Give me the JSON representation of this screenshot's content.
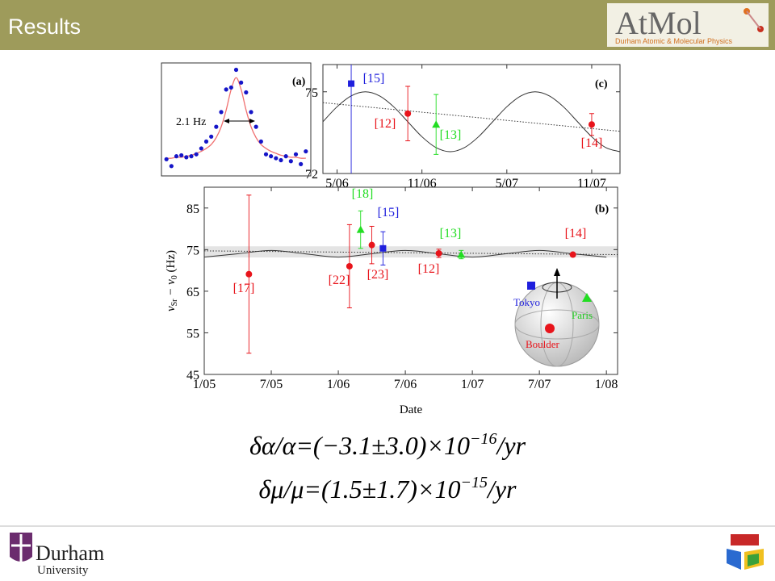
{
  "header": {
    "title": "Results",
    "logo": "AtMol",
    "logo_subtitle": "Durham Atomic & Molecular Physics"
  },
  "chart_data": [
    {
      "type": "scatter",
      "panel_label": "(a)",
      "annotation": "2.1 Hz",
      "x": [
        0,
        1,
        2,
        3,
        4,
        5,
        6,
        7,
        8,
        9,
        10,
        11,
        12,
        13,
        14,
        15,
        16,
        17,
        18,
        19,
        20,
        21,
        22,
        23,
        24,
        25,
        26,
        27,
        28
      ],
      "values": [
        0.07,
        0.0,
        0.1,
        0.11,
        0.09,
        0.1,
        0.12,
        0.18,
        0.25,
        0.3,
        0.4,
        0.55,
        0.78,
        0.8,
        0.98,
        0.85,
        0.75,
        0.55,
        0.4,
        0.25,
        0.12,
        0.1,
        0.08,
        0.06,
        0.1,
        0.05,
        0.12,
        0.02,
        0.15
      ],
      "color": "#1515c8",
      "fit": {
        "values": [
          0.08,
          0.08,
          0.09,
          0.09,
          0.1,
          0.11,
          0.13,
          0.15,
          0.18,
          0.22,
          0.29,
          0.4,
          0.57,
          0.78,
          0.9,
          0.78,
          0.57,
          0.4,
          0.29,
          0.22,
          0.18,
          0.15,
          0.13,
          0.11,
          0.1,
          0.09,
          0.09,
          0.08,
          0.08
        ],
        "color": "#f07070"
      },
      "xlim": [
        -1,
        29
      ],
      "ylim": [
        -0.1,
        1.05
      ]
    },
    {
      "type": "errorbar",
      "panel_label": "(b)",
      "xlabel": "Date",
      "ylabel": [
        "ν",
        "Sr",
        " − ν",
        "0",
        " (Hz)"
      ],
      "xlim": [
        "2005-01",
        "2008-02"
      ],
      "ylim": [
        45,
        90
      ],
      "yticks": [
        45,
        55,
        65,
        75,
        85
      ],
      "xticks": [
        {
          "value": "2005-01",
          "label": "1/05"
        },
        {
          "value": "2005-07",
          "label": "7/05"
        },
        {
          "value": "2006-01",
          "label": "1/06"
        },
        {
          "value": "2006-07",
          "label": "7/06"
        },
        {
          "value": "2007-01",
          "label": "1/07"
        },
        {
          "value": "2007-07",
          "label": "7/07"
        },
        {
          "value": "2008-01",
          "label": "1/08"
        }
      ],
      "points": [
        {
          "label": "[17]",
          "x": "2005-05",
          "y": 69.1,
          "err": 19,
          "color": "#e8141b",
          "marker": "circle"
        },
        {
          "label": "[22]",
          "x": "2006-02",
          "y": 71.0,
          "err": 10,
          "color": "#e8141b",
          "marker": "circle"
        },
        {
          "label": "[18]",
          "x": "2006-03",
          "y": 79.8,
          "err": 4.5,
          "color": "#22dd22",
          "marker": "triangle"
        },
        {
          "label": "[23]",
          "x": "2006-04",
          "y": 76.1,
          "err": 4.5,
          "color": "#e8141b",
          "marker": "circle"
        },
        {
          "label": "[15]",
          "x": "2006-05",
          "y": 75.3,
          "err": 4,
          "color": "#1f1fdd",
          "marker": "square"
        },
        {
          "label": "[12]",
          "x": "2006-10",
          "y": 74.1,
          "err": 1,
          "color": "#e8141b",
          "marker": "circle"
        },
        {
          "label": "[13]",
          "x": "2006-12",
          "y": 73.8,
          "err": 1,
          "color": "#22dd22",
          "marker": "triangle"
        },
        {
          "label": "[14]",
          "x": "2007-10",
          "y": 73.8,
          "err": 0.4,
          "color": "#e8141b",
          "marker": "circle"
        }
      ],
      "curve": {
        "x": [
          "2005-01",
          "2005-04",
          "2005-07",
          "2005-10",
          "2006-01",
          "2006-04",
          "2006-07",
          "2006-10",
          "2007-01",
          "2007-04",
          "2007-07",
          "2007-10",
          "2008-01"
        ],
        "y": [
          73.2,
          74,
          74.8,
          74,
          73.2,
          74,
          74.8,
          74,
          73.2,
          74,
          74.8,
          74,
          73.2
        ]
      },
      "trend": {
        "x": [
          "2005-01",
          "2008-02"
        ],
        "y": [
          74.7,
          73.8
        ]
      },
      "band": [
        73.1,
        75.8
      ],
      "inset": {
        "labels": [
          "Tokyo",
          "Paris",
          "Boulder"
        ]
      }
    },
    {
      "type": "errorbar",
      "panel_label": "(c)",
      "xlim": [
        "2006-04",
        "2008-01"
      ],
      "ylim": [
        72,
        76
      ],
      "yticks": [
        72,
        75
      ],
      "xticks": [
        {
          "value": "2006-05",
          "label": "5/06"
        },
        {
          "value": "2006-11",
          "label": "11/06"
        },
        {
          "value": "2007-05",
          "label": "5/07"
        },
        {
          "value": "2007-11",
          "label": "11/07"
        }
      ],
      "points": [
        {
          "label": "[15]",
          "x": "2006-06",
          "y": 75.3,
          "err": 4.5,
          "color": "#1f1fdd",
          "marker": "square"
        },
        {
          "label": "[12]",
          "x": "2006-10",
          "y": 74.2,
          "err": 1,
          "color": "#e8141b",
          "marker": "circle"
        },
        {
          "label": "[13]",
          "x": "2006-12",
          "y": 73.8,
          "err": 1.1,
          "color": "#22dd22",
          "marker": "triangle"
        },
        {
          "label": "[14]",
          "x": "2007-11",
          "y": 73.8,
          "err": 0.4,
          "color": "#e8141b",
          "marker": "circle"
        }
      ],
      "curve": {
        "x": [
          "2006-04",
          "2006-05",
          "2006-06",
          "2006-07",
          "2006-08",
          "2006-09",
          "2006-10",
          "2006-11",
          "2006-12",
          "2007-01",
          "2007-02",
          "2007-03",
          "2007-04",
          "2007-05",
          "2007-06",
          "2007-07",
          "2007-08",
          "2007-09",
          "2007-10",
          "2007-11",
          "2007-12",
          "2008-01"
        ],
        "y": [
          73.9,
          74.45,
          74.85,
          75.0,
          74.85,
          74.45,
          73.9,
          73.35,
          72.95,
          72.8,
          72.95,
          73.35,
          73.9,
          74.45,
          74.85,
          75.0,
          74.85,
          74.45,
          73.9,
          73.35,
          72.95,
          72.8
        ]
      },
      "trend": {
        "x": [
          "2006-04",
          "2008-01"
        ],
        "y": [
          74.6,
          73.55
        ]
      }
    }
  ],
  "equations": [
    [
      "δα/α=(−3.1±3.0)×10",
      "−16",
      "/yr"
    ],
    [
      "δμ/μ=(1.5±1.7)×10",
      "−15",
      "/yr"
    ]
  ],
  "footer": {
    "university": [
      "Durham",
      "University"
    ]
  }
}
